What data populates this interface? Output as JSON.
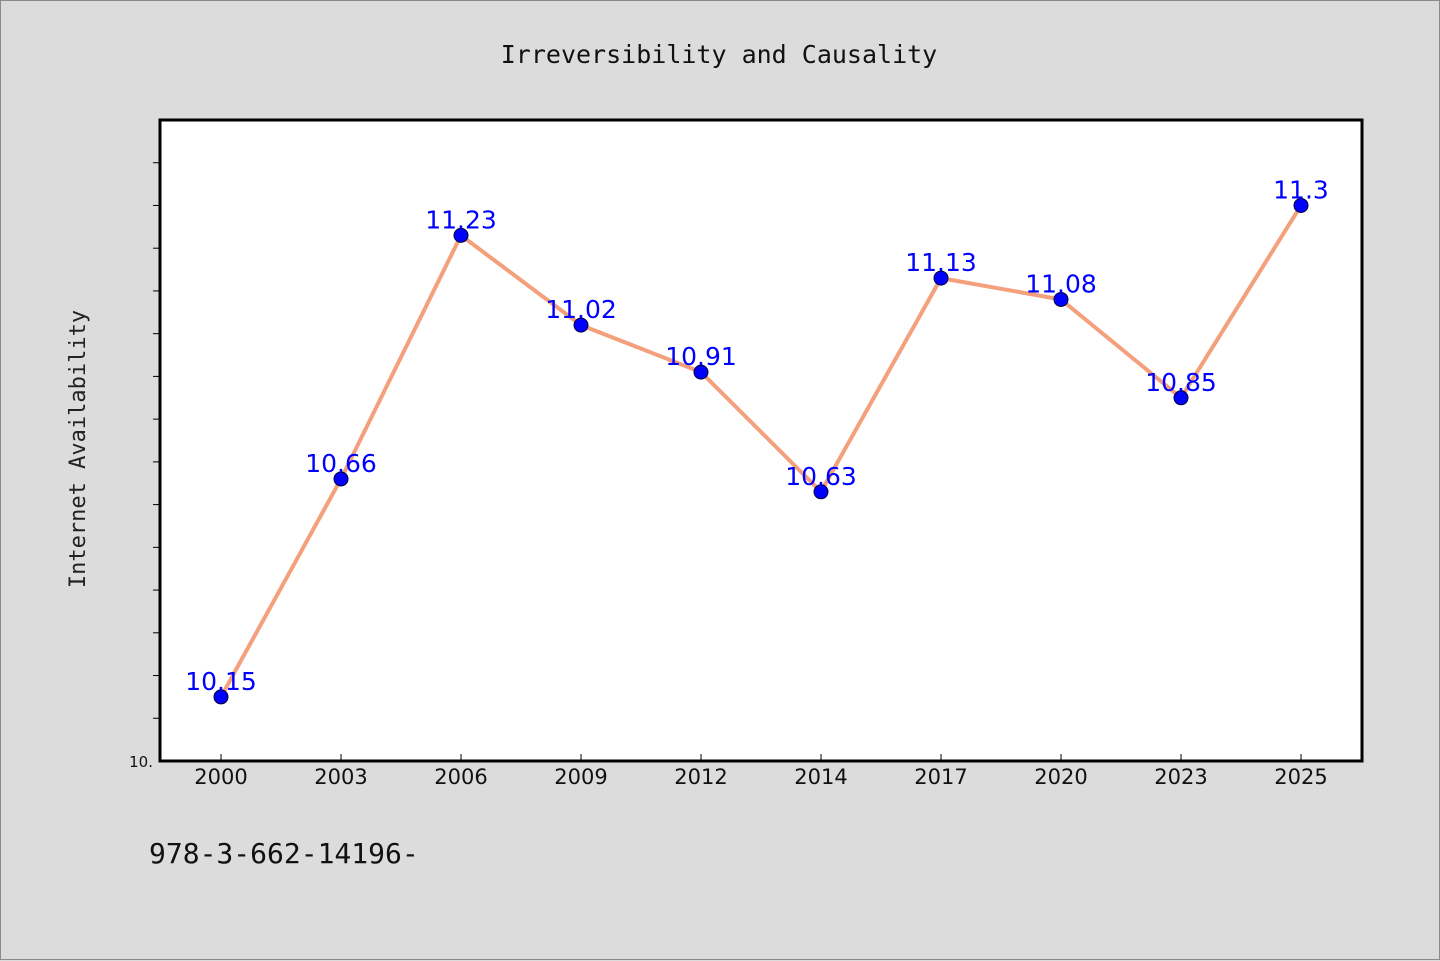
{
  "footer": {
    "code": "978-3-662-14196-"
  },
  "chart_data": {
    "type": "line",
    "title": "Irreversibility and Causality",
    "xlabel": "",
    "ylabel": "Internet Availability",
    "categories": [
      "2000",
      "2003",
      "2006",
      "2009",
      "2012",
      "2014",
      "2017",
      "2020",
      "2023",
      "2025"
    ],
    "series": [
      {
        "values": [
          10.15,
          10.66,
          11.23,
          11.02,
          10.91,
          10.63,
          11.13,
          11.08,
          10.85,
          11.3
        ],
        "data_labels": [
          "10.15",
          "10.66",
          "11.23",
          "11.02",
          "10.91",
          "10.63",
          "11.13",
          "11.08",
          "10.85",
          "11.3"
        ],
        "line_color": "#f4a07c",
        "marker_color": "#0000ff"
      }
    ],
    "ylim": [
      10.0,
      11.5
    ],
    "y_tick_label": "10.",
    "grid": false,
    "legend": "none"
  }
}
